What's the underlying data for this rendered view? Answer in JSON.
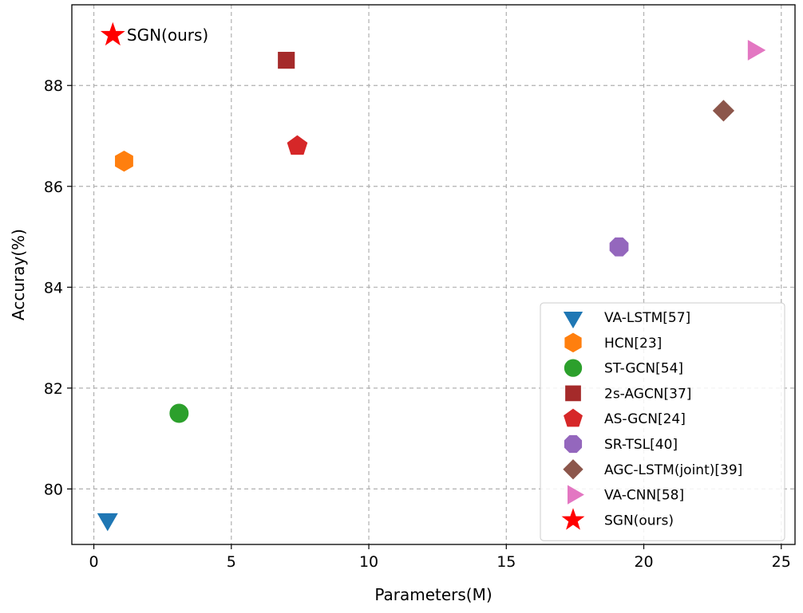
{
  "chart_data": {
    "type": "scatter",
    "title": "",
    "xlabel": "Parameters(M)",
    "ylabel": "Accuray(%)",
    "xlim": [
      -0.8,
      25.5
    ],
    "ylim": [
      78.9,
      89.6
    ],
    "xticks": [
      0,
      5,
      10,
      15,
      20,
      25
    ],
    "yticks": [
      80,
      82,
      84,
      86,
      88
    ],
    "grid": true,
    "legend_position": "lower-right",
    "series": [
      {
        "name": "VA-LSTM[57]",
        "x": 0.5,
        "y": 79.4,
        "marker": "triangle-down",
        "color": "#1f77b4"
      },
      {
        "name": "HCN[23]",
        "x": 1.1,
        "y": 86.5,
        "marker": "hexagon",
        "color": "#ff7f0e"
      },
      {
        "name": "ST-GCN[54]",
        "x": 3.1,
        "y": 81.5,
        "marker": "circle",
        "color": "#2ca02c"
      },
      {
        "name": "2s-AGCN[37]",
        "x": 7.0,
        "y": 88.5,
        "marker": "square",
        "color": "#a52a2a"
      },
      {
        "name": "AS-GCN[24]",
        "x": 7.4,
        "y": 86.8,
        "marker": "pentagon",
        "color": "#d62728"
      },
      {
        "name": "SR-TSL[40]",
        "x": 19.1,
        "y": 84.8,
        "marker": "octagon",
        "color": "#9467bd"
      },
      {
        "name": "AGC-LSTM(joint)[39]",
        "x": 22.9,
        "y": 87.5,
        "marker": "diamond",
        "color": "#8c564b"
      },
      {
        "name": "VA-CNN[58]",
        "x": 24.0,
        "y": 88.7,
        "marker": "triangle-right",
        "color": "#e377c2"
      },
      {
        "name": "SGN(ours)",
        "x": 0.69,
        "y": 89.0,
        "marker": "star",
        "color": "#ff0000"
      }
    ],
    "annotations": [
      {
        "text": "SGN(ours)",
        "x": 1.2,
        "y": 89.0
      }
    ]
  }
}
